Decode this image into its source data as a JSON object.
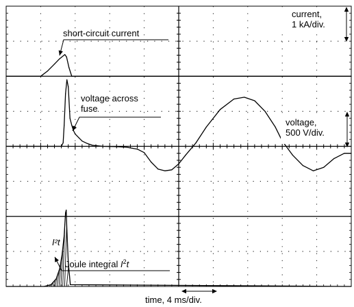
{
  "chart_data": {
    "type": "line",
    "grid": true,
    "divisions": {
      "x": 10,
      "y": 8
    },
    "scales": {
      "current": "current,\n1 kA/div.",
      "voltage": "voltage,\n500 V/div.",
      "time": "time, 4 ms/div."
    },
    "annotations": {
      "current": "short-circuit current",
      "voltage": "voltage across\nfuse",
      "joule_main": "Joule integral ",
      "joule_sym": "I",
      "joule_sup": "2",
      "joule_t": "t",
      "i2t_small": "I²t"
    },
    "axes_units": {
      "x": "div",
      "y": "div"
    },
    "xlim": [
      0,
      10
    ],
    "ylim": [
      0,
      8
    ],
    "series": [
      {
        "name": "short-circuit current",
        "x": [
          0,
          1.0,
          1.2,
          1.4,
          1.55,
          1.7,
          1.75,
          1.82,
          1.9,
          10
        ],
        "y": [
          6.0,
          6.0,
          6.15,
          6.35,
          6.5,
          6.62,
          6.55,
          6.25,
          6.0,
          6.0
        ]
      },
      {
        "name": "voltage across fuse",
        "x": [
          0,
          1.6,
          1.65,
          1.68,
          1.72,
          1.76,
          1.8,
          1.85,
          1.9,
          1.95,
          2.0,
          2.1,
          2.2,
          2.35,
          2.5,
          2.8,
          3.2,
          3.5,
          3.8,
          4.0,
          4.2,
          4.4,
          4.6,
          4.8,
          5.0,
          5.2,
          5.5,
          5.8,
          6.2,
          6.6,
          6.9,
          7.2,
          7.5,
          7.8,
          8.0,
          8.3,
          8.6,
          8.9,
          9.2,
          9.5,
          9.8,
          10
        ],
        "y": [
          4.0,
          4.0,
          4.1,
          4.6,
          5.5,
          5.9,
          5.7,
          4.8,
          4.6,
          4.45,
          4.35,
          4.25,
          4.15,
          4.08,
          4.03,
          4.0,
          3.99,
          3.97,
          3.92,
          3.82,
          3.55,
          3.35,
          3.3,
          3.33,
          3.5,
          3.75,
          4.1,
          4.55,
          5.05,
          5.35,
          5.4,
          5.3,
          5.0,
          4.55,
          4.15,
          3.75,
          3.45,
          3.3,
          3.4,
          3.65,
          3.8,
          3.8
        ]
      },
      {
        "name": "Joule integral I²t",
        "x": [
          0,
          1.1,
          1.3,
          1.45,
          1.55,
          1.62,
          1.68,
          1.72,
          1.74,
          1.76,
          1.8,
          1.86,
          10
        ],
        "y": [
          0.0,
          0.0,
          0.05,
          0.22,
          0.5,
          0.9,
          1.45,
          2.1,
          2.18,
          1.6,
          0.7,
          0.05,
          0.0
        ]
      }
    ]
  }
}
